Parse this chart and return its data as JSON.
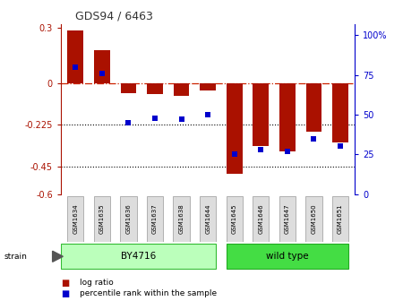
{
  "title": "GDS94 / 6463",
  "samples": [
    "GSM1634",
    "GSM1635",
    "GSM1636",
    "GSM1637",
    "GSM1638",
    "GSM1644",
    "GSM1645",
    "GSM1646",
    "GSM1647",
    "GSM1650",
    "GSM1651"
  ],
  "log_ratio": [
    0.285,
    0.18,
    -0.055,
    -0.06,
    -0.07,
    -0.04,
    -0.49,
    -0.34,
    -0.37,
    -0.26,
    -0.32
  ],
  "percentile_rank": [
    80,
    76,
    45,
    48,
    47,
    50,
    25,
    28,
    27,
    35,
    30
  ],
  "strain_labels": [
    "BY4716",
    "wild type"
  ],
  "by4716_color": "#bbffbb",
  "wildtype_color": "#44dd44",
  "bar_color": "#aa1100",
  "dot_color": "#0000cc",
  "zero_line_color": "#cc2200",
  "ylim_left": [
    -0.6,
    0.32
  ],
  "ylim_right": [
    0,
    107
  ],
  "yticks_left": [
    0.3,
    0.0,
    -0.225,
    -0.45,
    -0.6
  ],
  "yticks_left_labels": [
    "0.3",
    "0",
    "-0.225",
    "-0.45",
    "-0.6"
  ],
  "yticks_right": [
    100,
    75,
    50,
    25,
    0
  ],
  "yticks_right_labels": [
    "100%",
    "75",
    "50",
    "25",
    "0"
  ],
  "background_color": "#ffffff"
}
